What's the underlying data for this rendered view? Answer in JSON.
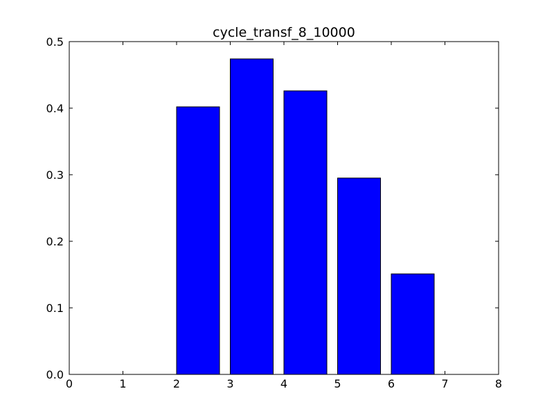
{
  "chart_data": {
    "type": "bar",
    "title": "cycle_transf_8_10000",
    "xlabel": "",
    "ylabel": "",
    "bar_align": "left",
    "bar_width": 0.8,
    "x": [
      0,
      1,
      2,
      3,
      4,
      5,
      6,
      7
    ],
    "values": [
      0.0,
      0.0,
      0.402,
      0.474,
      0.426,
      0.295,
      0.151,
      0.0
    ],
    "xlim": [
      0,
      8
    ],
    "ylim": [
      0,
      0.5
    ],
    "xticks": [
      "0",
      "1",
      "2",
      "3",
      "4",
      "5",
      "6",
      "7",
      "8"
    ],
    "yticks": [
      "0.0",
      "0.1",
      "0.2",
      "0.3",
      "0.4",
      "0.5"
    ],
    "bar_color": "#0000ff",
    "edge_color": "#000000",
    "grid": false,
    "legend": "none"
  }
}
